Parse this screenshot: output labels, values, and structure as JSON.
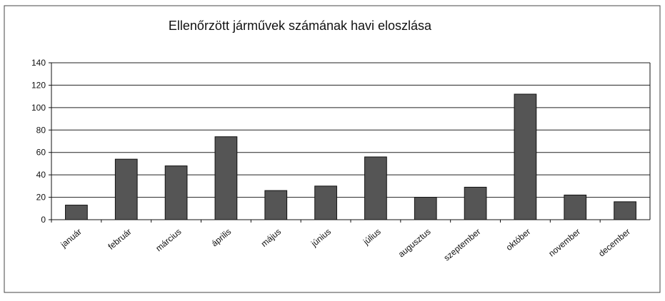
{
  "chart_data": {
    "type": "bar",
    "title": "Ellenőrzött járművek számának havi eloszlása",
    "categories": [
      "január",
      "február",
      "március",
      "április",
      "május",
      "június",
      "július",
      "augusztus",
      "szeptember",
      "október",
      "november",
      "december"
    ],
    "values": [
      13,
      54,
      48,
      74,
      26,
      30,
      56,
      20,
      29,
      112,
      22,
      16
    ],
    "color": "#555555",
    "ylim": [
      0,
      140
    ],
    "yticks": [
      0,
      20,
      40,
      60,
      80,
      100,
      120,
      140
    ],
    "grid": true
  }
}
